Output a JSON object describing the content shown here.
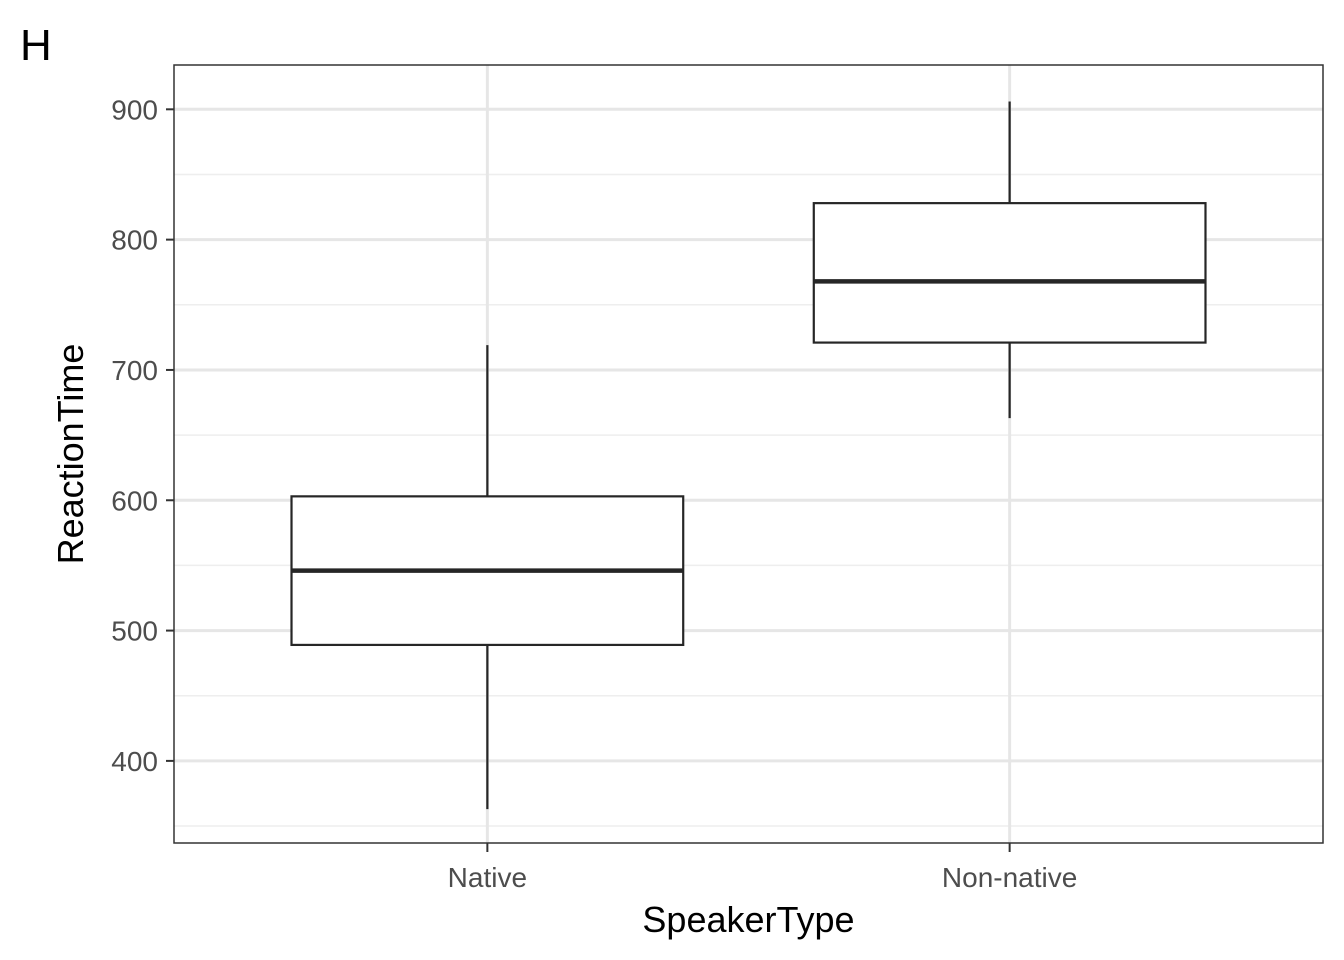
{
  "tag": "H",
  "chart_data": {
    "type": "boxplot",
    "xlabel": "SpeakerType",
    "ylabel": "ReactionTime",
    "categories": [
      "Native",
      "Non-native"
    ],
    "boxes": [
      {
        "category": "Native",
        "whisker_low": 363,
        "q1": 489,
        "median": 546,
        "q3": 603,
        "whisker_high": 719
      },
      {
        "category": "Non-native",
        "whisker_low": 663,
        "q1": 721,
        "median": 768,
        "q3": 828,
        "whisker_high": 906
      }
    ],
    "ylim": [
      337,
      934
    ],
    "yticks": [
      400,
      500,
      600,
      700,
      800,
      900
    ],
    "grid": true,
    "colors": {
      "box_fill": "#ffffff",
      "box_stroke": "#262626",
      "grid_major": "#e6e6e6",
      "grid_minor": "#eeeeee",
      "panel_border": "#333333",
      "tick_label": "#4d4d4d"
    }
  }
}
